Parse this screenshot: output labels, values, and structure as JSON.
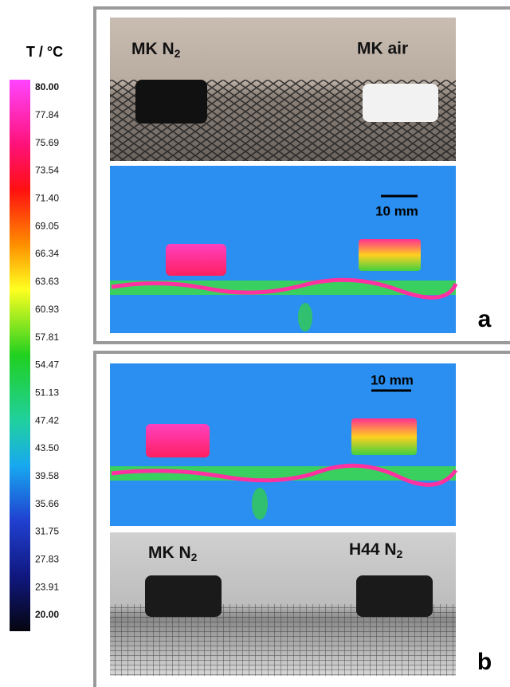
{
  "colorbar": {
    "title": "T / °C",
    "ticks": [
      "80.00",
      "77.84",
      "75.69",
      "73.54",
      "71.40",
      "69.05",
      "66.34",
      "63.63",
      "60.93",
      "57.81",
      "54.47",
      "51.13",
      "47.42",
      "43.50",
      "39.58",
      "35.66",
      "31.75",
      "27.83",
      "23.91",
      "20.00"
    ]
  },
  "panels": [
    {
      "label": "a",
      "scale_bar": "10 mm",
      "samples": [
        {
          "name": "MK N",
          "sub": "2"
        },
        {
          "name": "MK air"
        }
      ]
    },
    {
      "label": "b",
      "scale_bar": "10 mm",
      "samples": [
        {
          "name": "MK N",
          "sub": "2"
        },
        {
          "name": "H44 N",
          "sub": "2"
        }
      ]
    }
  ]
}
